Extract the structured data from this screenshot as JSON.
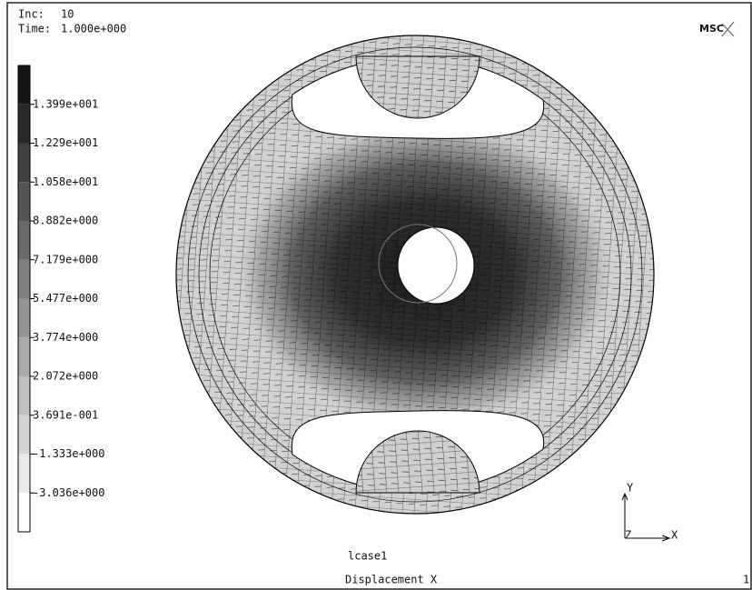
{
  "header": {
    "inc_label": "Inc:",
    "inc": "10",
    "time_label": "Time:",
    "time": "1.000e+000"
  },
  "logo": "MSC",
  "legend": {
    "labels": [
      "1.399e+001",
      "1.229e+001",
      "1.058e+001",
      "8.882e+000",
      "7.179e+000",
      "5.477e+000",
      "3.774e+000",
      "2.072e+000",
      "3.691e-001",
      "-1.333e+000",
      "-3.036e+000"
    ]
  },
  "triad": {
    "y": "Y",
    "x": "X",
    "z": "Z"
  },
  "footer": {
    "loadcase": "lcase1",
    "quantity": "Displacement X",
    "page": "1"
  }
}
